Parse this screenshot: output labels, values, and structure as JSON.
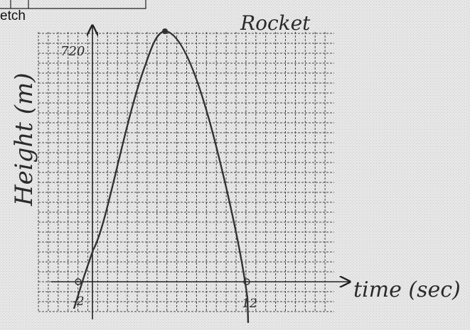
{
  "header": {
    "fragment": "etch"
  },
  "sketch": {
    "title": "Rocket",
    "y_axis_label": "Height (m)",
    "x_axis_label": "time (sec)",
    "y_mark": "720",
    "x_marks": [
      "-2",
      "12"
    ]
  }
}
